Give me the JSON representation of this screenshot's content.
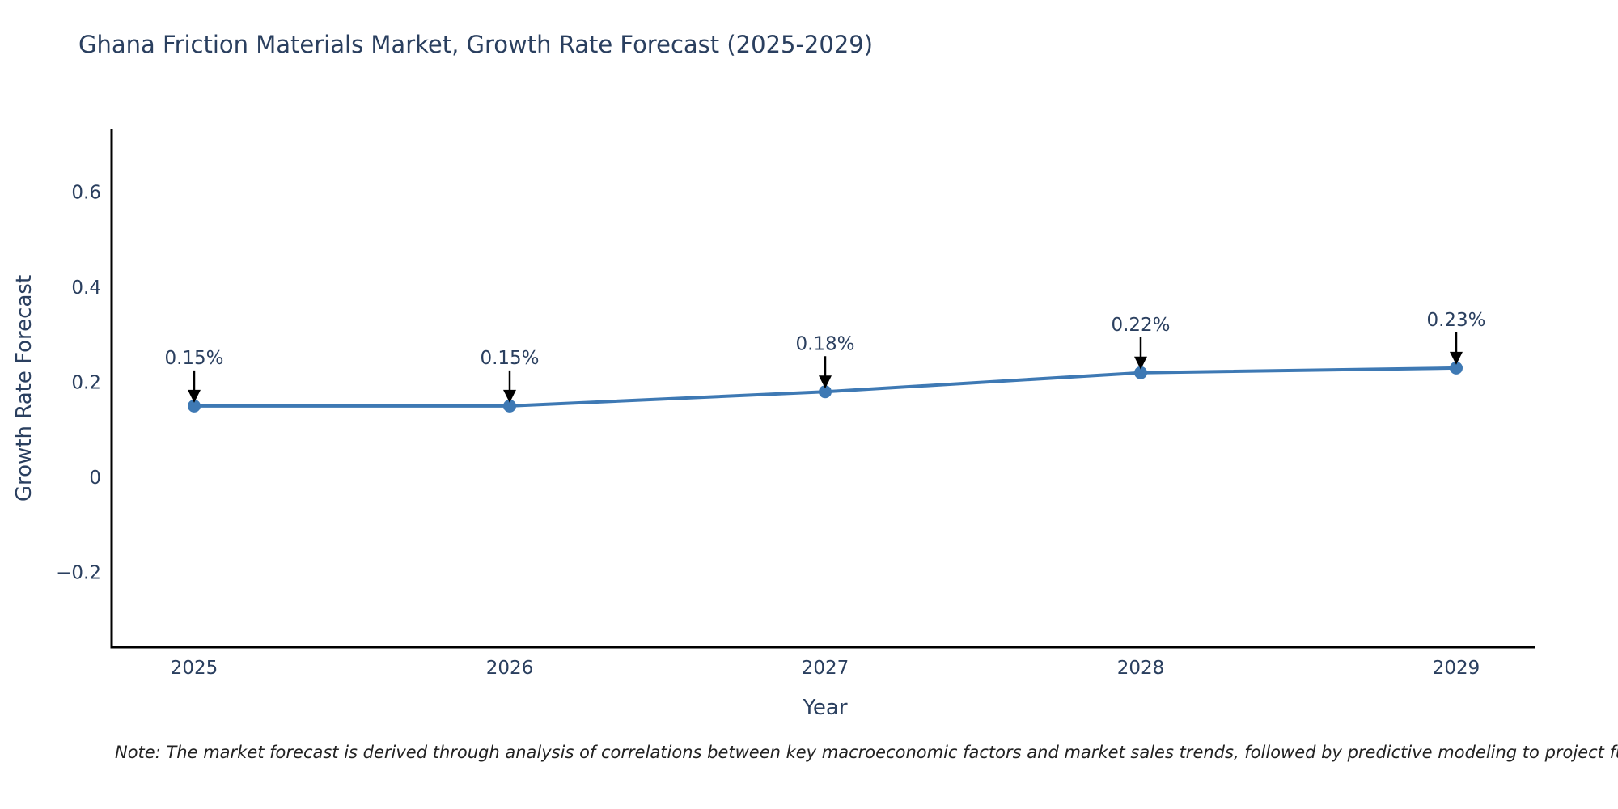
{
  "note": "Note: The market forecast is derived through analysis of correlations between key macroeconomic factors and market sales trends, followed by predictive modeling to project future sa",
  "colors": {
    "line": "#3e79b4",
    "marker": "#3e79b4",
    "axis": "#000000",
    "text": "#2a3f5f",
    "annotation_arrow": "#000000",
    "background": "#ffffff"
  },
  "chart_data": {
    "type": "line",
    "title": "Ghana Friction Materials Market, Growth Rate Forecast (2025-2029)",
    "xlabel": "Year",
    "ylabel": "Growth Rate Forecast",
    "x": [
      "2025",
      "2026",
      "2027",
      "2028",
      "2029"
    ],
    "y": [
      0.15,
      0.15,
      0.18,
      0.22,
      0.23
    ],
    "point_labels": [
      "0.15%",
      "0.15%",
      "0.18%",
      "0.22%",
      "0.23%"
    ],
    "yticks": [
      -0.2,
      0,
      0.2,
      0.4,
      0.6
    ],
    "ylim": [
      -0.36,
      0.73
    ],
    "grid": false,
    "legend": "none",
    "annotation_style": "label-above-with-down-arrow"
  }
}
